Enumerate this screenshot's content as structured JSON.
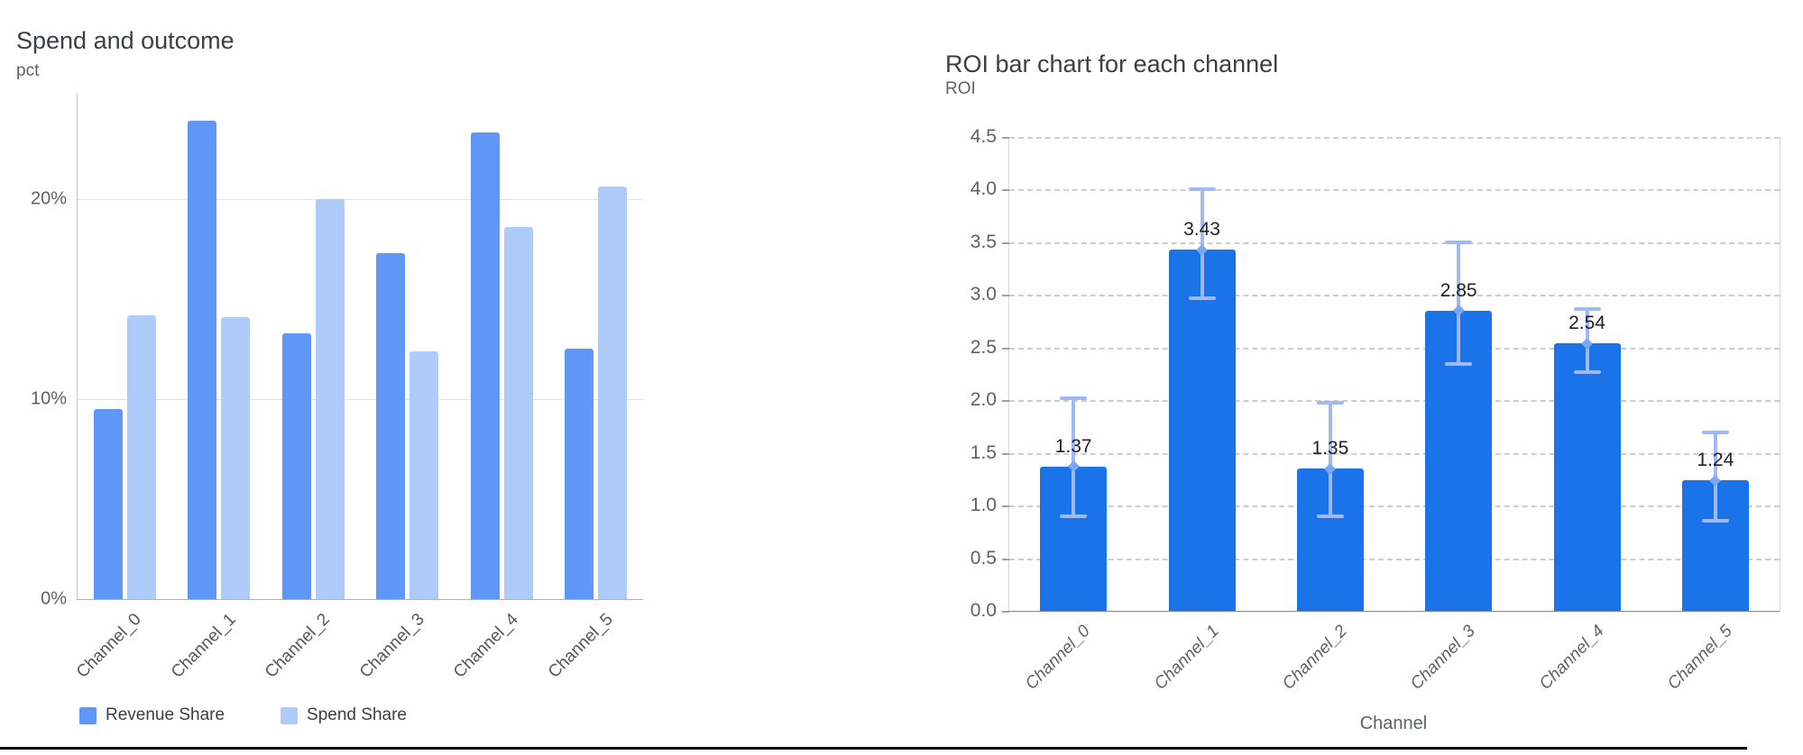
{
  "chart_data": [
    {
      "type": "bar",
      "title": "Spend and outcome",
      "ylabel": "pct",
      "xlabel": "",
      "categories": [
        "Channel_0",
        "Channel_1",
        "Channel_2",
        "Channel_3",
        "Channel_4",
        "Channel_5"
      ],
      "series": [
        {
          "name": "Revenue Share",
          "color": "#5e97f6",
          "values": [
            9.5,
            23.9,
            13.3,
            17.3,
            23.3,
            12.5
          ]
        },
        {
          "name": "Spend Share",
          "color": "#aecbfa",
          "values": [
            14.2,
            14.1,
            20.0,
            12.4,
            18.6,
            20.6
          ]
        }
      ],
      "y_ticks": [
        "0%",
        "10%",
        "20%"
      ],
      "y_tick_values": [
        0,
        10,
        20
      ],
      "ylim": [
        0,
        25.3
      ],
      "grid": "solid horizontal",
      "legend_position": "bottom",
      "x_tick_rotation": -45
    },
    {
      "type": "bar",
      "title": "ROI bar chart for each channel",
      "ylabel": "ROI",
      "xlabel": "Channel",
      "categories": [
        "Channel_0",
        "Channel_1",
        "Channel_2",
        "Channel_3",
        "Channel_4",
        "Channel_5"
      ],
      "values": [
        1.37,
        3.43,
        1.35,
        2.85,
        2.54,
        1.24
      ],
      "bar_labels": [
        "1.37",
        "3.43",
        "1.35",
        "2.85",
        "2.54",
        "1.24"
      ],
      "error_low": [
        0.88,
        2.95,
        0.88,
        2.33,
        2.25,
        0.84
      ],
      "error_high": [
        2.04,
        4.02,
        1.99,
        3.52,
        2.88,
        1.71
      ],
      "bar_color": "#1a73e8",
      "error_color": "#9db9f7",
      "error_marker_color": "#7da7f4",
      "y_ticks": [
        "0.0",
        "0.5",
        "1.0",
        "1.5",
        "2.0",
        "2.5",
        "3.0",
        "3.5",
        "4.0",
        "4.5"
      ],
      "y_tick_values": [
        0,
        0.5,
        1,
        1.5,
        2,
        2.5,
        3,
        3.5,
        4,
        4.5
      ],
      "ylim": [
        0,
        4.5
      ],
      "grid": "dashed horizontal",
      "legend_position": "none",
      "x_tick_rotation": -45
    }
  ],
  "window": {
    "bottom_border_color": "#0b0b0b"
  }
}
